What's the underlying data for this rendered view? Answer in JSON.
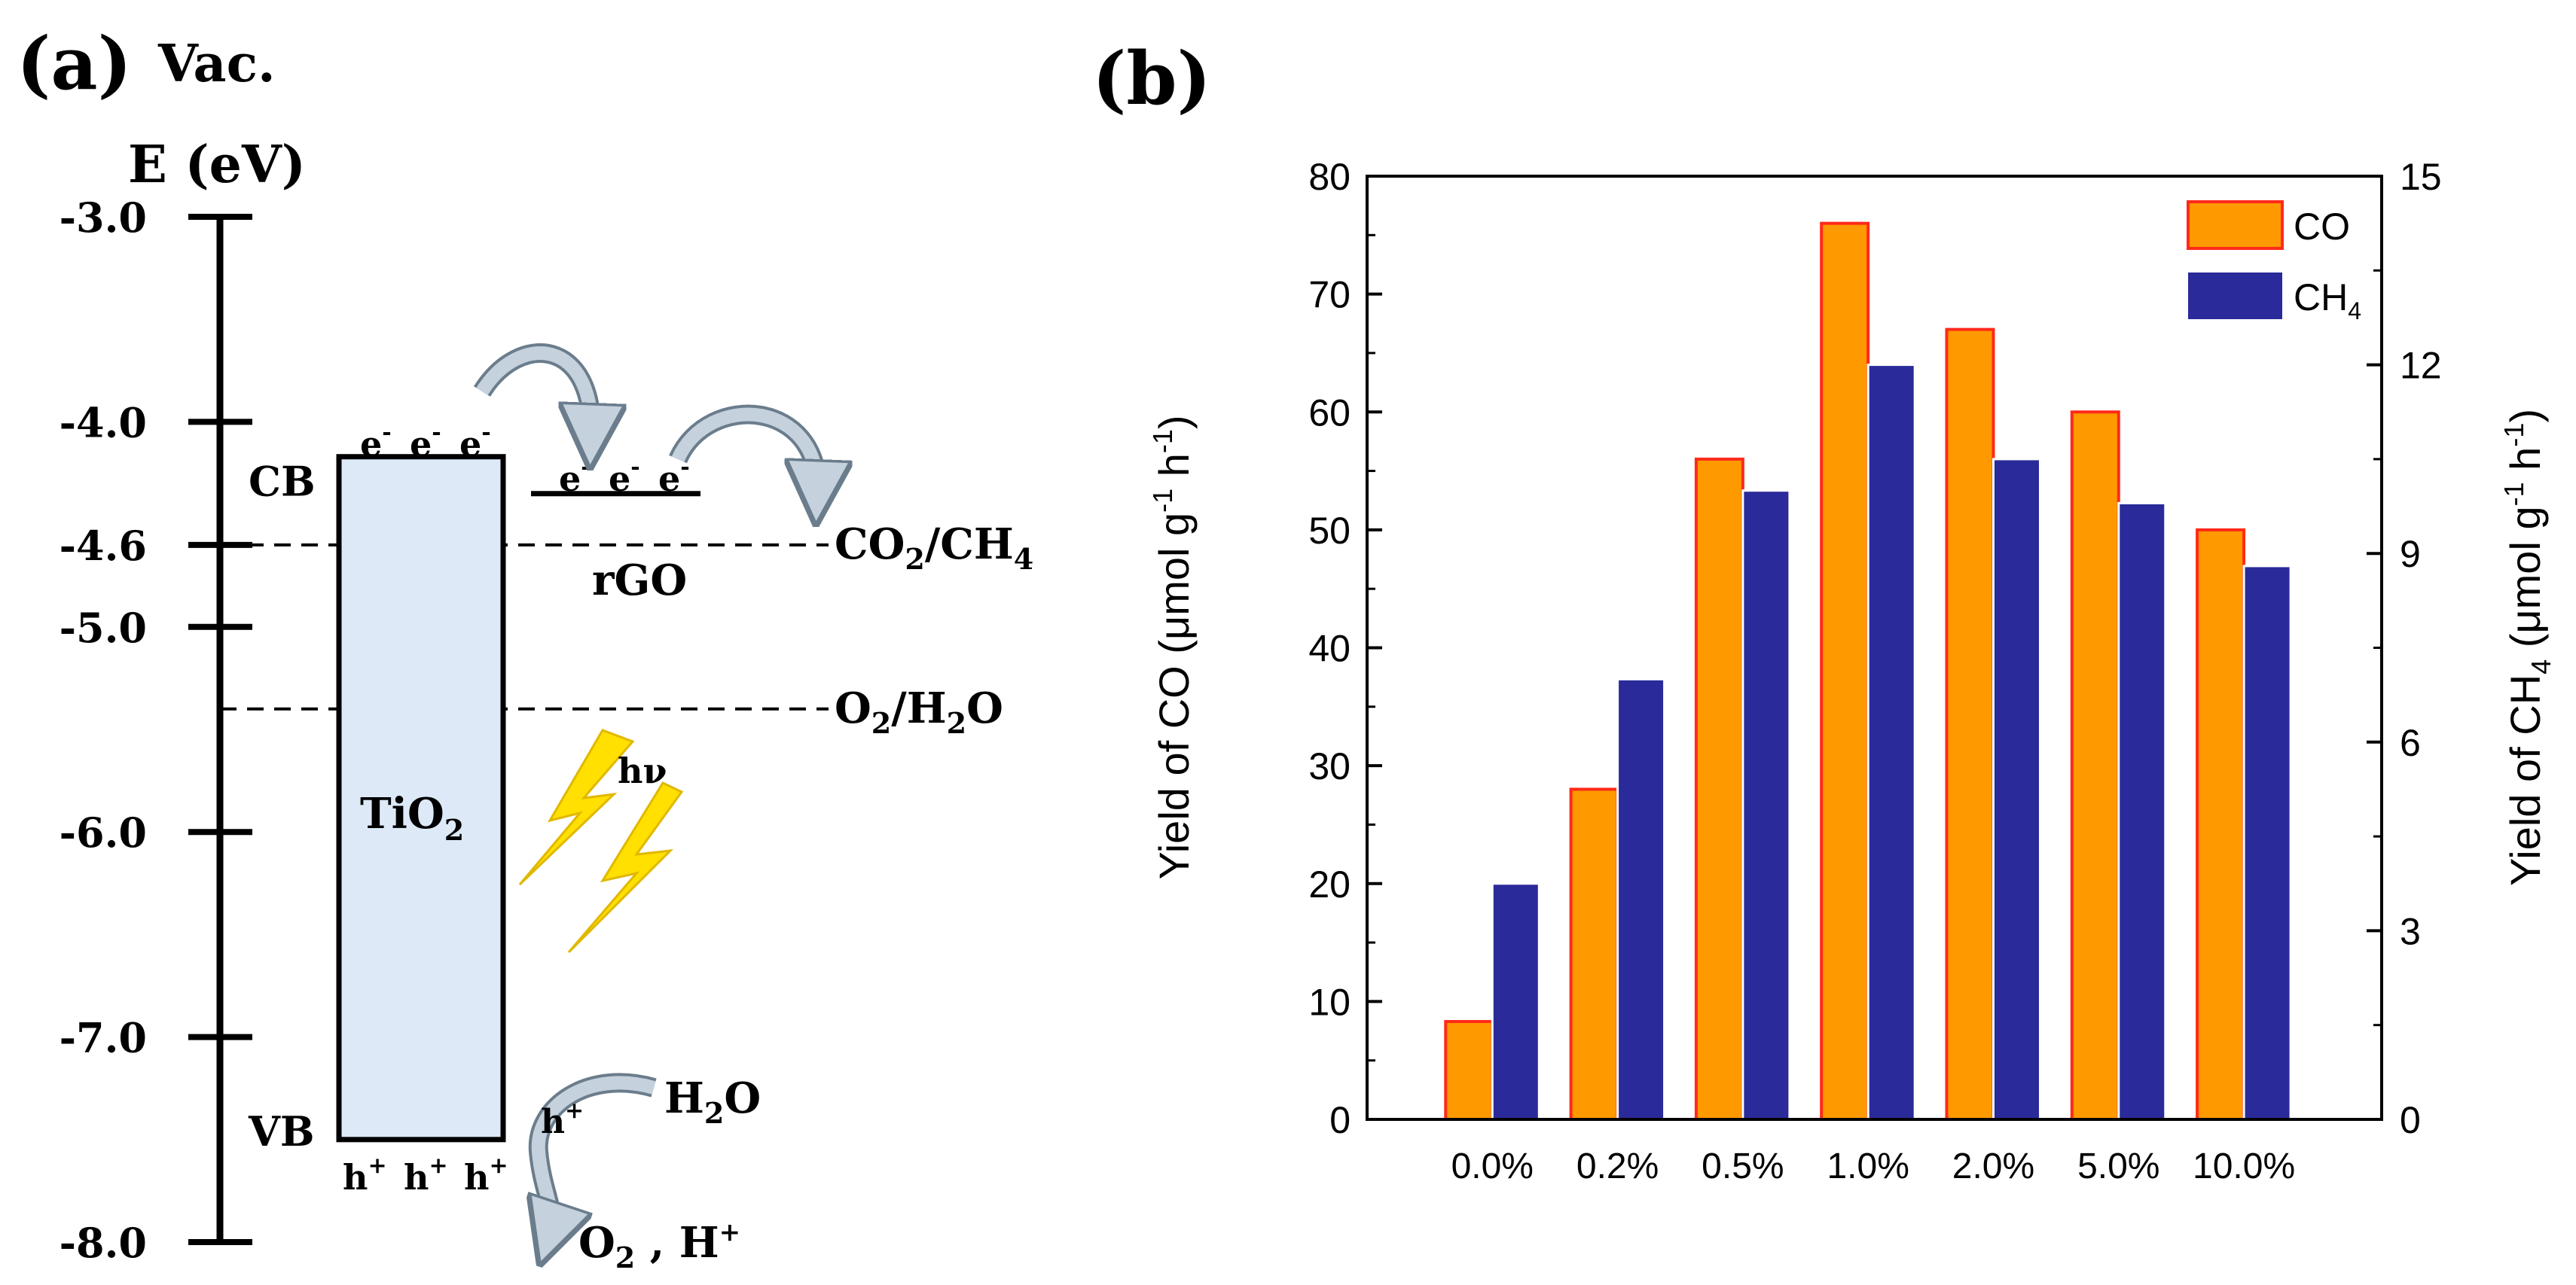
{
  "panel_a": {
    "label": "(a)",
    "axis_title_1": "Vac.",
    "axis_title_2": "E (eV)",
    "ticks": [
      "-3.0",
      "-4.0",
      "-4.6",
      "-5.0",
      "-6.0",
      "-7.0",
      "-8.0"
    ],
    "tick_values": [
      -3.0,
      -4.0,
      -4.6,
      -5.0,
      -6.0,
      -7.0,
      -8.0
    ],
    "cb_label": "CB",
    "vb_label": "VB",
    "tio2_label": "TiO",
    "tio2_sub": "2",
    "cb_edge_ev": -4.17,
    "vb_edge_ev": -7.5,
    "rgo_level_ev": -4.35,
    "rgo_label": "rGO",
    "electron": "e",
    "electron_sup": "-",
    "hole": "h",
    "hole_sup": "+",
    "hv_label": "hν",
    "co2_level_ev": -4.6,
    "co2_label_main": "CO",
    "co2_sub": "2",
    "co2_label_mid": "/CH",
    "ch4_sub": "4",
    "o2_level_ev": -5.4,
    "o2_label_main": "O",
    "o2_sub": "2",
    "o2_label_mid": "/H",
    "h2o_sub": "2",
    "o2_label_end": "O",
    "h2o_label": "H",
    "h2o_label_sub": "2",
    "h2o_label_end": "O",
    "products_label": "O",
    "products_sub": "2",
    "products_end": " , H",
    "products_sup": "+",
    "colors": {
      "box_fill": "#dde9f7",
      "arrow": "#c5d2dd",
      "lightning": "#ffe000"
    }
  },
  "chart_data": {
    "type": "bar",
    "panel_label": "(b)",
    "categories": [
      "0.0%",
      "0.2%",
      "0.5%",
      "1.0%",
      "2.0%",
      "5.0%",
      "10.0%"
    ],
    "series": [
      {
        "name": "CO",
        "axis": "left",
        "values": [
          8.3,
          28,
          56,
          76,
          67,
          60,
          50
        ],
        "color": "#ff9900",
        "edge": "#ff2a1a"
      },
      {
        "name": "CH",
        "name_sub": "4",
        "axis": "right",
        "values": [
          3.75,
          7.0,
          10.0,
          12.0,
          10.5,
          9.8,
          8.8
        ],
        "color": "#2a2a9a",
        "edge": "#ffffff"
      }
    ],
    "ylabel_left": "Yield of CO (μmol g",
    "ylabel_left_sup1": "-1",
    "ylabel_left_mid": " h",
    "ylabel_left_sup2": "-1",
    "ylabel_left_end": ")",
    "ylabel_right": "Yield of CH",
    "ylabel_right_sub": "4",
    "ylabel_right_mid": " (μmol g",
    "ylabel_right_sup1": "-1",
    "ylabel_right_mid2": " h",
    "ylabel_right_sup2": "-1",
    "ylabel_right_end": ")",
    "ylim_left": [
      0,
      80
    ],
    "ylim_right": [
      0,
      15
    ],
    "yticks_left": [
      0,
      10,
      20,
      30,
      40,
      50,
      60,
      70,
      80
    ],
    "yticks_right": [
      0,
      3,
      6,
      9,
      12,
      15
    ],
    "legend_position": "top-right"
  }
}
